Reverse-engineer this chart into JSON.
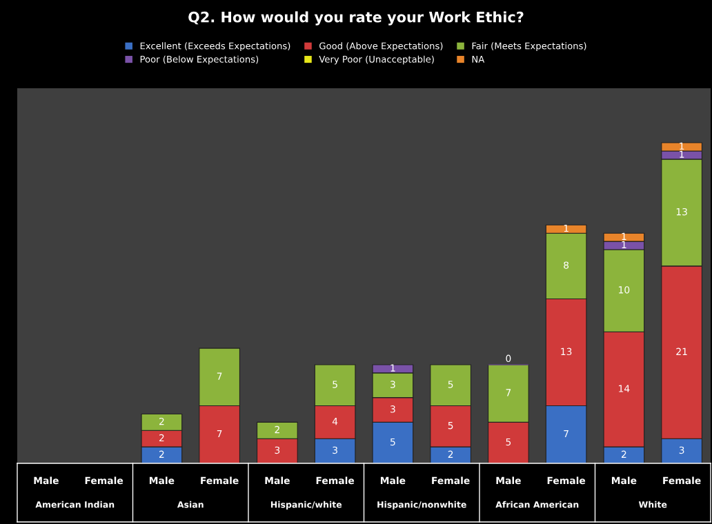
{
  "chart_data": {
    "type": "bar",
    "stacked": true,
    "title": "Q2. How would you rate your Work Ethic?",
    "categories": [
      "Male",
      "Female",
      "Male",
      "Female",
      "Male",
      "Female",
      "Male",
      "Female",
      "Male",
      "Female",
      "Male",
      "Female"
    ],
    "annotations": [
      "American Indian",
      "Asian",
      "Hispanic/white",
      "Hispanic/nonwhite",
      "African American",
      "White"
    ],
    "series": [
      {
        "name": "Excellent (Exceeds Expectations)",
        "color": "#3a6fc4",
        "values": [
          null,
          null,
          2,
          null,
          null,
          3,
          5,
          2,
          null,
          7,
          2,
          3
        ]
      },
      {
        "name": "Good (Above Expectations)",
        "color": "#d03a3a",
        "values": [
          null,
          null,
          2,
          7,
          3,
          4,
          3,
          5,
          5,
          13,
          14,
          21
        ]
      },
      {
        "name": "Fair (Meets Expectations)",
        "color": "#8cb43c",
        "values": [
          null,
          null,
          2,
          7,
          2,
          5,
          3,
          5,
          7,
          8,
          10,
          13
        ]
      },
      {
        "name": "Poor (Below Expectations)",
        "color": "#7a52a8",
        "values": [
          null,
          null,
          null,
          null,
          null,
          null,
          1,
          null,
          0,
          null,
          1,
          1
        ]
      },
      {
        "name": "Very Poor (Unacceptable)",
        "color": "#e6e619",
        "values": [
          null,
          null,
          null,
          null,
          null,
          null,
          null,
          null,
          null,
          null,
          null,
          null
        ]
      },
      {
        "name": "NA",
        "color": "#e8842a",
        "values": [
          null,
          null,
          null,
          null,
          null,
          null,
          null,
          null,
          null,
          1,
          1,
          1
        ]
      }
    ],
    "data_labels": true,
    "legend": "top",
    "grid": false
  }
}
